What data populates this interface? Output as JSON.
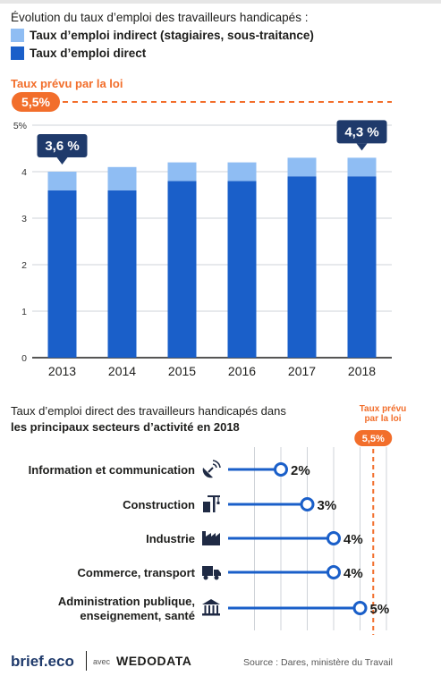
{
  "title": "Évolution du taux d’emploi des travailleurs handicapés :",
  "legend": [
    {
      "label": "Taux d’emploi indirect (stagiaires, sous-traitance)",
      "color": "#8fbdf3"
    },
    {
      "label": "Taux d’emploi direct",
      "color": "#1a5fc9"
    }
  ],
  "law_rate_label": "Taux prévu par la loi",
  "law_rate_value": "5,5%",
  "chart_data": [
    {
      "type": "bar",
      "categories": [
        "2013",
        "2014",
        "2015",
        "2016",
        "2017",
        "2018"
      ],
      "series": [
        {
          "name": "Taux d’emploi direct",
          "values": [
            3.6,
            3.6,
            3.8,
            3.8,
            3.9,
            3.9
          ]
        },
        {
          "name": "Taux d’emploi indirect (stagiaires, sous-traitance)",
          "values": [
            0.4,
            0.5,
            0.4,
            0.4,
            0.4,
            0.4
          ]
        }
      ],
      "stacked": true,
      "y_ticks": [
        "0",
        "1",
        "2",
        "3",
        "4",
        "5%"
      ],
      "ylim": [
        0,
        5
      ],
      "reference_line": {
        "value": 5.5,
        "label": "5,5%"
      },
      "callouts": [
        {
          "category": "2013",
          "label": "3,6 %"
        },
        {
          "category": "2018",
          "label": "4,3 %"
        }
      ],
      "grid": true,
      "legend_position": "top-left"
    },
    {
      "type": "bar",
      "title": "Taux d’emploi direct des travailleurs handicapés dans",
      "title_bold": "les principaux secteurs d’activité en 2018",
      "categories": [
        "Information et communication",
        "Construction",
        "Industrie",
        "Commerce, transport",
        "Administration publique, enseignement, santé"
      ],
      "label_lines": [
        [
          "Information et communication"
        ],
        [
          "Construction"
        ],
        [
          "Industrie"
        ],
        [
          "Commerce, transport"
        ],
        [
          "Administration publique,",
          "enseignement, santé"
        ]
      ],
      "icons": [
        "satellite-icon",
        "crane-icon",
        "factory-icon",
        "truck-icon",
        "bank-icon"
      ],
      "values": [
        2,
        3,
        4,
        4,
        5
      ],
      "value_labels": [
        "2%",
        "3%",
        "4%",
        "4%",
        "5%"
      ],
      "xlim": [
        0,
        6
      ],
      "reference_line": {
        "value": 5.5,
        "label_lines": [
          "Taux prévu",
          "par la loi"
        ],
        "value_label": "5,5%"
      },
      "grid": true
    }
  ],
  "footer": {
    "brand": "brief.eco",
    "avec": "avec",
    "partner": "WEDODATA",
    "source": "Source : Dares, ministère du Travail"
  },
  "colors": {
    "direct": "#1a5fc9",
    "indirect": "#8fbdf3",
    "accent": "#f26e2b",
    "callout": "#1f3a6b",
    "grid": "#cfd3d8",
    "axis": "#1d1d1b"
  }
}
